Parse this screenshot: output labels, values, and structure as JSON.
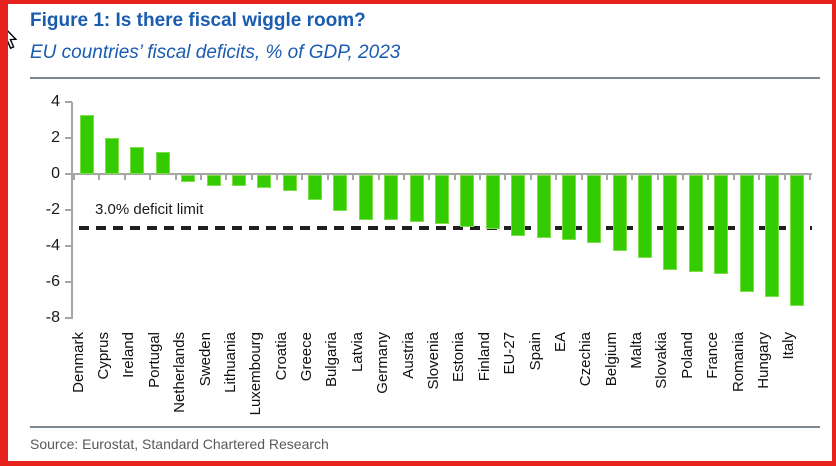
{
  "header": {
    "title": "Figure 1: Is there fiscal wiggle room?",
    "subtitle": "EU countries’ fiscal deficits, % of GDP, 2023"
  },
  "footer": {
    "source": "Source: Eurostat, Standard Chartered Research"
  },
  "colors": {
    "title_blue": "#1a5cb0",
    "bar_green": "#33cc00",
    "axis_gray": "#a6a6a6",
    "rule_gray": "#7c8790",
    "source_gray": "#595959",
    "dash_black": "#1f1f1f",
    "screenshot_border_red": "#e8231d"
  },
  "chart_data": {
    "type": "bar",
    "title": "Figure 1: Is there fiscal wiggle room?",
    "subtitle": "EU countries’ fiscal deficits, % of GDP, 2023",
    "xlabel": "",
    "ylabel": "",
    "ylim": [
      -8,
      4
    ],
    "yticks": [
      4,
      2,
      0,
      -2,
      -4,
      -6,
      -8
    ],
    "grid": false,
    "legend": "none",
    "categories": [
      "Denmark",
      "Cyprus",
      "Ireland",
      "Portugal",
      "Netherlands",
      "Sweden",
      "Lithuania",
      "Luxembourg",
      "Croatia",
      "Greece",
      "Bulgaria",
      "Latvia",
      "Germany",
      "Austria",
      "Slovenia",
      "Estonia",
      "Finland",
      "EU-27",
      "Spain",
      "EA",
      "Czechia",
      "Belgium",
      "Malta",
      "Slovakia",
      "Poland",
      "France",
      "Romania",
      "Hungary",
      "Italy"
    ],
    "values": [
      3.3,
      2.0,
      1.5,
      1.2,
      -0.4,
      -0.6,
      -0.6,
      -0.7,
      -0.9,
      -1.4,
      -2.0,
      -2.5,
      -2.5,
      -2.6,
      -2.7,
      -2.9,
      -3.0,
      -3.4,
      -3.5,
      -3.6,
      -3.8,
      -4.2,
      -4.6,
      -5.3,
      -5.4,
      -5.5,
      -6.5,
      -6.8,
      -7.3
    ],
    "reference_line": {
      "value": -3,
      "label": "3.0% deficit limit",
      "style": "dashed"
    }
  }
}
